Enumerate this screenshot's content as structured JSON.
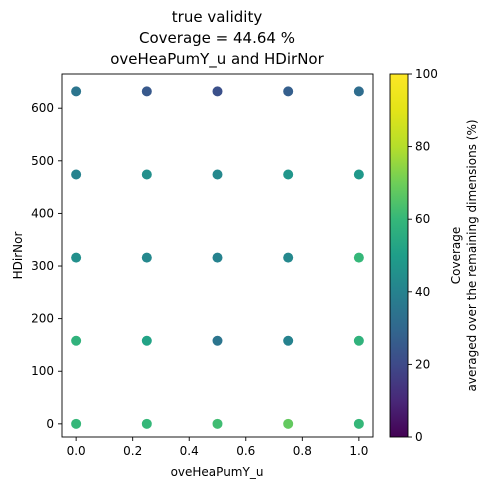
{
  "chart_data": {
    "type": "scatter",
    "title_lines": [
      "true validity",
      "Coverage = 44.64 %",
      "oveHeaPumY_u and HDirNor"
    ],
    "xlabel": "oveHeaPumY_u",
    "ylabel": "HDirNor",
    "xlim": [
      -0.05,
      1.05
    ],
    "ylim": [
      -25,
      665
    ],
    "xticks": [
      0.0,
      0.2,
      0.4,
      0.6,
      0.8,
      1.0
    ],
    "xtick_labels": [
      "0.0",
      "0.2",
      "0.4",
      "0.6",
      "0.8",
      "1.0"
    ],
    "yticks": [
      0,
      100,
      200,
      300,
      400,
      500,
      600
    ],
    "ytick_labels": [
      "0",
      "100",
      "200",
      "300",
      "400",
      "500",
      "600"
    ],
    "colormap": "viridis",
    "colorbar": {
      "label_lines": [
        "Coverage",
        "averaged over the remaining dimensions (%)"
      ],
      "range": [
        0,
        100
      ],
      "ticks": [
        0,
        20,
        40,
        60,
        80,
        100
      ],
      "tick_labels": [
        "0",
        "20",
        "40",
        "60",
        "80",
        "100"
      ]
    },
    "grid": false,
    "points": [
      {
        "x": 0.0,
        "y": 0,
        "c": 60
      },
      {
        "x": 0.25,
        "y": 0,
        "c": 60
      },
      {
        "x": 0.5,
        "y": 0,
        "c": 62
      },
      {
        "x": 0.75,
        "y": 0,
        "c": 68
      },
      {
        "x": 1.0,
        "y": 0,
        "c": 60
      },
      {
        "x": 0.0,
        "y": 158,
        "c": 58
      },
      {
        "x": 0.25,
        "y": 158,
        "c": 52
      },
      {
        "x": 0.5,
        "y": 158,
        "c": 35
      },
      {
        "x": 0.75,
        "y": 158,
        "c": 40
      },
      {
        "x": 1.0,
        "y": 158,
        "c": 58
      },
      {
        "x": 0.0,
        "y": 316,
        "c": 45
      },
      {
        "x": 0.25,
        "y": 316,
        "c": 42
      },
      {
        "x": 0.5,
        "y": 316,
        "c": 40
      },
      {
        "x": 0.75,
        "y": 316,
        "c": 42
      },
      {
        "x": 1.0,
        "y": 316,
        "c": 60
      },
      {
        "x": 0.0,
        "y": 474,
        "c": 40
      },
      {
        "x": 0.25,
        "y": 474,
        "c": 45
      },
      {
        "x": 0.5,
        "y": 474,
        "c": 42
      },
      {
        "x": 0.75,
        "y": 474,
        "c": 47
      },
      {
        "x": 1.0,
        "y": 474,
        "c": 48
      },
      {
        "x": 0.0,
        "y": 632,
        "c": 35
      },
      {
        "x": 0.25,
        "y": 632,
        "c": 25
      },
      {
        "x": 0.5,
        "y": 632,
        "c": 22
      },
      {
        "x": 0.75,
        "y": 632,
        "c": 27
      },
      {
        "x": 1.0,
        "y": 632,
        "c": 32
      }
    ]
  }
}
